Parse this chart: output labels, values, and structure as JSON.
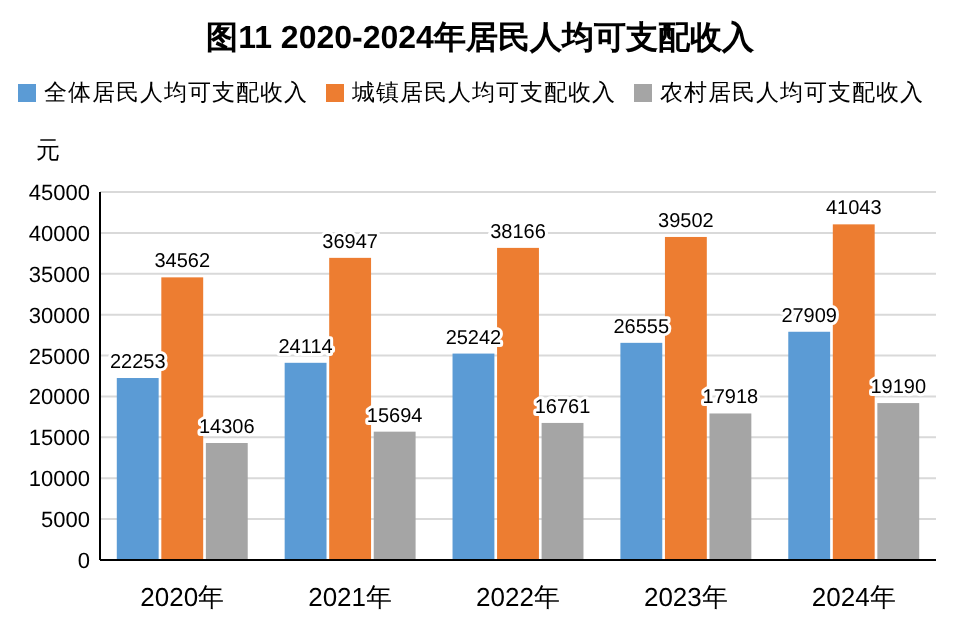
{
  "chart_data": {
    "type": "bar",
    "title": "图11  2020-2024年居民人均可支配收入",
    "ylabel": "元",
    "categories": [
      "2020年",
      "2021年",
      "2022年",
      "2023年",
      "2024年"
    ],
    "series": [
      {
        "name": "全体居民人均可支配收入",
        "color": "#5b9bd5",
        "values": [
          22253,
          24114,
          25242,
          26555,
          27909
        ]
      },
      {
        "name": "城镇居民人均可支配收入",
        "color": "#ed7d31",
        "values": [
          34562,
          36947,
          38166,
          39502,
          41043
        ]
      },
      {
        "name": "农村居民人均可支配收入",
        "color": "#a5a5a5",
        "values": [
          14306,
          15694,
          16761,
          17918,
          19190
        ]
      }
    ],
    "ylim": [
      0,
      45000
    ],
    "yticks": [
      0,
      5000,
      10000,
      15000,
      20000,
      25000,
      30000,
      35000,
      40000,
      45000
    ],
    "grid": "y",
    "legend": "top",
    "data_labels": true
  }
}
